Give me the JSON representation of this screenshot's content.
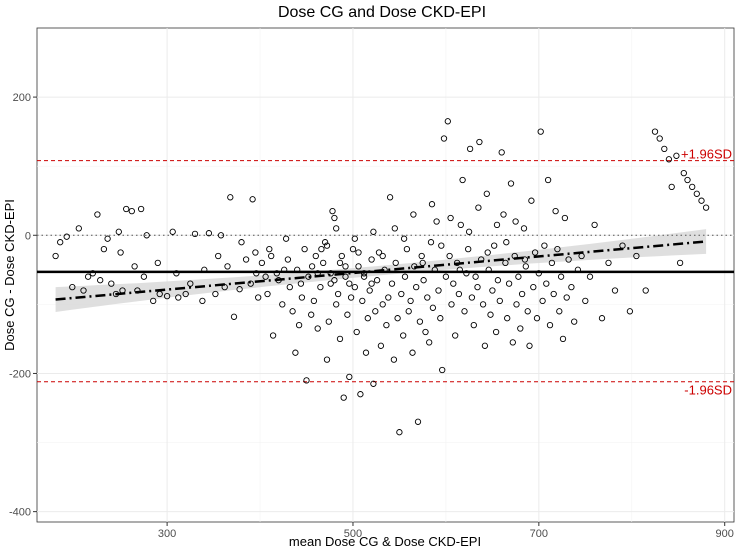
{
  "chart_data": {
    "type": "scatter",
    "title": "Dose CG and Dose CKD-EPI",
    "xlabel": "mean Dose CG & Dose CKD-EPI",
    "ylabel": "Dose CG - Dose CKD-EPI",
    "xlim": [
      160,
      910
    ],
    "ylim": [
      -415,
      300
    ],
    "x_ticks": [
      300,
      500,
      700,
      900
    ],
    "y_ticks": [
      -400,
      -200,
      0,
      200
    ],
    "grid": true,
    "reference_lines": {
      "zero": 0,
      "mean_bias": -53,
      "upper_loa": 108,
      "lower_loa": -212,
      "upper_label": "+1.96SD",
      "lower_label": "-1.96SD"
    },
    "regression": {
      "style": "dash-dot",
      "x_range": [
        180,
        880
      ],
      "intercept_at_x0": -93,
      "slope": 0.12,
      "ci_halfwidth_at_ends": 18,
      "ci_halfwidth_at_mid": 7
    },
    "colors": {
      "limits": "#cc0000",
      "mean_line": "#000000",
      "points": "#000000",
      "ci_band": "#d9d9d9",
      "grid": "#ebebeb"
    },
    "points": [
      [
        180,
        -30
      ],
      [
        185,
        -10
      ],
      [
        192,
        -2
      ],
      [
        198,
        -75
      ],
      [
        205,
        10
      ],
      [
        210,
        -80
      ],
      [
        215,
        -60
      ],
      [
        220,
        -55
      ],
      [
        225,
        30
      ],
      [
        228,
        -65
      ],
      [
        232,
        -20
      ],
      [
        236,
        -5
      ],
      [
        240,
        -70
      ],
      [
        245,
        -85
      ],
      [
        248,
        5
      ],
      [
        252,
        -80
      ],
      [
        256,
        38
      ],
      [
        262,
        35
      ],
      [
        268,
        -80
      ],
      [
        272,
        38
      ],
      [
        278,
        0
      ],
      [
        285,
        -95
      ],
      [
        292,
        -85
      ],
      [
        300,
        -88
      ],
      [
        306,
        5
      ],
      [
        312,
        -90
      ],
      [
        320,
        -85
      ],
      [
        330,
        2
      ],
      [
        338,
        -95
      ],
      [
        345,
        3
      ],
      [
        352,
        -85
      ],
      [
        358,
        0
      ],
      [
        362,
        -75
      ],
      [
        368,
        55
      ],
      [
        372,
        -118
      ],
      [
        378,
        -78
      ],
      [
        385,
        -35
      ],
      [
        390,
        -70
      ],
      [
        392,
        52
      ],
      [
        395,
        -25
      ],
      [
        398,
        -90
      ],
      [
        402,
        -40
      ],
      [
        406,
        -60
      ],
      [
        408,
        -85
      ],
      [
        410,
        -20
      ],
      [
        414,
        -145
      ],
      [
        418,
        -55
      ],
      [
        420,
        -65
      ],
      [
        424,
        -100
      ],
      [
        428,
        -5
      ],
      [
        430,
        -35
      ],
      [
        432,
        -75
      ],
      [
        435,
        -110
      ],
      [
        438,
        -170
      ],
      [
        440,
        -50
      ],
      [
        442,
        -130
      ],
      [
        445,
        -90
      ],
      [
        448,
        -20
      ],
      [
        450,
        -210
      ],
      [
        452,
        -60
      ],
      [
        455,
        -115
      ],
      [
        458,
        -95
      ],
      [
        460,
        -30
      ],
      [
        462,
        -135
      ],
      [
        465,
        -75
      ],
      [
        468,
        -40
      ],
      [
        470,
        -10
      ],
      [
        472,
        -180
      ],
      [
        474,
        -125
      ],
      [
        476,
        -70
      ],
      [
        478,
        35
      ],
      [
        480,
        25
      ],
      [
        482,
        -100
      ],
      [
        484,
        -85
      ],
      [
        486,
        -150
      ],
      [
        488,
        -30
      ],
      [
        490,
        -235
      ],
      [
        492,
        -60
      ],
      [
        494,
        -115
      ],
      [
        496,
        -205
      ],
      [
        498,
        -90
      ],
      [
        500,
        -20
      ],
      [
        502,
        -75
      ],
      [
        504,
        -140
      ],
      [
        506,
        -45
      ],
      [
        508,
        -230
      ],
      [
        510,
        -95
      ],
      [
        512,
        -55
      ],
      [
        514,
        -170
      ],
      [
        516,
        -120
      ],
      [
        518,
        -80
      ],
      [
        520,
        -35
      ],
      [
        522,
        -215
      ],
      [
        524,
        -110
      ],
      [
        526,
        -65
      ],
      [
        528,
        -25
      ],
      [
        530,
        -160
      ],
      [
        532,
        -100
      ],
      [
        534,
        -50
      ],
      [
        536,
        -130
      ],
      [
        538,
        -90
      ],
      [
        540,
        55
      ],
      [
        542,
        -70
      ],
      [
        544,
        -180
      ],
      [
        546,
        -40
      ],
      [
        548,
        -120
      ],
      [
        550,
        -285
      ],
      [
        552,
        -85
      ],
      [
        554,
        -145
      ],
      [
        556,
        -60
      ],
      [
        558,
        -20
      ],
      [
        560,
        -110
      ],
      [
        562,
        -95
      ],
      [
        564,
        -170
      ],
      [
        566,
        -45
      ],
      [
        568,
        -75
      ],
      [
        570,
        -270
      ],
      [
        572,
        -125
      ],
      [
        574,
        -30
      ],
      [
        576,
        -65
      ],
      [
        578,
        -140
      ],
      [
        580,
        -90
      ],
      [
        582,
        -155
      ],
      [
        584,
        -10
      ],
      [
        586,
        -105
      ],
      [
        588,
        -50
      ],
      [
        590,
        20
      ],
      [
        592,
        -80
      ],
      [
        594,
        -120
      ],
      [
        596,
        -195
      ],
      [
        598,
        140
      ],
      [
        600,
        -60
      ],
      [
        602,
        165
      ],
      [
        604,
        -30
      ],
      [
        606,
        -100
      ],
      [
        608,
        -70
      ],
      [
        610,
        -145
      ],
      [
        612,
        -40
      ],
      [
        614,
        -85
      ],
      [
        616,
        15
      ],
      [
        618,
        80
      ],
      [
        620,
        -110
      ],
      [
        622,
        -55
      ],
      [
        624,
        -20
      ],
      [
        626,
        125
      ],
      [
        628,
        -90
      ],
      [
        630,
        -130
      ],
      [
        632,
        -60
      ],
      [
        634,
        -75
      ],
      [
        636,
        135
      ],
      [
        638,
        -35
      ],
      [
        640,
        -100
      ],
      [
        642,
        -160
      ],
      [
        644,
        60
      ],
      [
        646,
        -50
      ],
      [
        648,
        -115
      ],
      [
        650,
        -80
      ],
      [
        652,
        -15
      ],
      [
        654,
        -140
      ],
      [
        656,
        -65
      ],
      [
        658,
        -95
      ],
      [
        660,
        120
      ],
      [
        662,
        30
      ],
      [
        664,
        -40
      ],
      [
        666,
        -120
      ],
      [
        668,
        -70
      ],
      [
        670,
        75
      ],
      [
        672,
        -155
      ],
      [
        674,
        -30
      ],
      [
        676,
        -100
      ],
      [
        678,
        -60
      ],
      [
        680,
        -135
      ],
      [
        682,
        -85
      ],
      [
        684,
        10
      ],
      [
        686,
        -45
      ],
      [
        688,
        -110
      ],
      [
        690,
        -160
      ],
      [
        692,
        50
      ],
      [
        694,
        -75
      ],
      [
        696,
        -25
      ],
      [
        698,
        -120
      ],
      [
        700,
        -55
      ],
      [
        702,
        150
      ],
      [
        704,
        -95
      ],
      [
        706,
        -15
      ],
      [
        708,
        -70
      ],
      [
        710,
        80
      ],
      [
        712,
        -130
      ],
      [
        714,
        -40
      ],
      [
        716,
        -85
      ],
      [
        718,
        35
      ],
      [
        720,
        -20
      ],
      [
        722,
        -110
      ],
      [
        724,
        -60
      ],
      [
        726,
        -150
      ],
      [
        728,
        25
      ],
      [
        730,
        -90
      ],
      [
        732,
        -35
      ],
      [
        735,
        -75
      ],
      [
        738,
        -125
      ],
      [
        742,
        -50
      ],
      [
        746,
        -30
      ],
      [
        750,
        -95
      ],
      [
        755,
        -60
      ],
      [
        760,
        15
      ],
      [
        768,
        -120
      ],
      [
        775,
        -40
      ],
      [
        782,
        -80
      ],
      [
        790,
        -15
      ],
      [
        798,
        -110
      ],
      [
        805,
        -30
      ],
      [
        815,
        -80
      ],
      [
        825,
        150
      ],
      [
        830,
        140
      ],
      [
        835,
        125
      ],
      [
        840,
        110
      ],
      [
        843,
        70
      ],
      [
        848,
        115
      ],
      [
        852,
        -40
      ],
      [
        856,
        90
      ],
      [
        860,
        80
      ],
      [
        865,
        70
      ],
      [
        870,
        60
      ],
      [
        875,
        50
      ],
      [
        880,
        40
      ],
      [
        545,
        10
      ],
      [
        555,
        -5
      ],
      [
        565,
        30
      ],
      [
        575,
        -40
      ],
      [
        585,
        45
      ],
      [
        595,
        -15
      ],
      [
        605,
        25
      ],
      [
        615,
        -50
      ],
      [
        625,
        5
      ],
      [
        635,
        40
      ],
      [
        645,
        -25
      ],
      [
        655,
        15
      ],
      [
        665,
        -10
      ],
      [
        675,
        20
      ],
      [
        685,
        -35
      ],
      [
        462,
        -55
      ],
      [
        472,
        -15
      ],
      [
        482,
        10
      ],
      [
        492,
        -45
      ],
      [
        502,
        -5
      ],
      [
        512,
        -60
      ],
      [
        522,
        5
      ],
      [
        532,
        -30
      ],
      [
        480,
        -65
      ],
      [
        520,
        -70
      ],
      [
        250,
        -25
      ],
      [
        265,
        -45
      ],
      [
        275,
        -60
      ],
      [
        290,
        -40
      ],
      [
        310,
        -55
      ],
      [
        325,
        -70
      ],
      [
        340,
        -50
      ],
      [
        355,
        -30
      ],
      [
        365,
        -45
      ],
      [
        380,
        -10
      ],
      [
        396,
        -55
      ],
      [
        412,
        -30
      ],
      [
        426,
        -50
      ],
      [
        444,
        -70
      ],
      [
        456,
        -45
      ],
      [
        466,
        -20
      ],
      [
        476,
        -55
      ],
      [
        486,
        -40
      ],
      [
        496,
        -70
      ],
      [
        506,
        -25
      ]
    ]
  }
}
